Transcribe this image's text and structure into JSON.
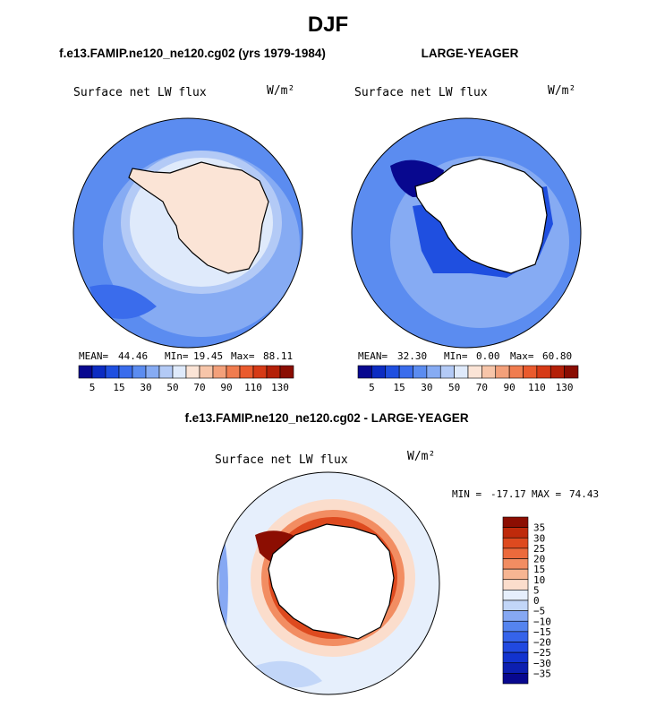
{
  "page_title": "DJF",
  "chart_data": [
    {
      "type": "heatmap",
      "subtype": "polar-stereographic-filled-contour",
      "region": "Southern Hemisphere",
      "title": "f.e13.FAMIP.ne120_ne120.cg02 (yrs 1979-1984)",
      "field_label": "Surface net LW flux",
      "units": "W/m²",
      "stats": {
        "mean_label": "MEAN=",
        "mean": "44.46",
        "min_label": "MIn=",
        "min": "19.45",
        "max_label": "Max=",
        "max": "88.11"
      },
      "levels": [
        5,
        15,
        30,
        50,
        70,
        90,
        110,
        130
      ],
      "tick_labels": [
        "5",
        "15",
        "30",
        "50",
        "70",
        "90",
        "110",
        "130"
      ],
      "colors": [
        "#08088f",
        "#0c2cc2",
        "#1f4fe0",
        "#3a6cec",
        "#5b8cf0",
        "#86abf3",
        "#b3caf6",
        "#dfeafb",
        "#fbe4d6",
        "#f7c5a9",
        "#f3a07a",
        "#f07c4f",
        "#ea5a2d",
        "#d63a16",
        "#b42008",
        "#8a0d02"
      ]
    },
    {
      "type": "heatmap",
      "subtype": "polar-stereographic-filled-contour",
      "region": "Southern Hemisphere",
      "title": "LARGE-YEAGER",
      "field_label": "Surface net LW flux",
      "units": "W/m²",
      "stats": {
        "mean_label": "MEAN=",
        "mean": "32.30",
        "min_label": "MIn=",
        "min": "0.00",
        "max_label": "Max=",
        "max": "60.80"
      },
      "levels": [
        5,
        15,
        30,
        50,
        70,
        90,
        110,
        130
      ],
      "tick_labels": [
        "5",
        "15",
        "30",
        "50",
        "70",
        "90",
        "110",
        "130"
      ],
      "colors": [
        "#08088f",
        "#0c2cc2",
        "#1f4fe0",
        "#3a6cec",
        "#5b8cf0",
        "#86abf3",
        "#b3caf6",
        "#dfeafb",
        "#fbe4d6",
        "#f7c5a9",
        "#f3a07a",
        "#f07c4f",
        "#ea5a2d",
        "#d63a16",
        "#b42008",
        "#8a0d02"
      ]
    },
    {
      "type": "heatmap",
      "subtype": "polar-stereographic-filled-contour-difference",
      "region": "Southern Hemisphere",
      "title": "f.e13.FAMIP.ne120_ne120.cg02 - LARGE-YEAGER",
      "field_label": "Surface net LW flux",
      "units": "W/m²",
      "stats": {
        "min_label": "MIN =",
        "min": "-17.17",
        "max_label": "MAX =",
        "max": "74.43"
      },
      "levels": [
        -35,
        -30,
        -25,
        -20,
        -15,
        -10,
        -5,
        0,
        5,
        10,
        15,
        20,
        25,
        30,
        35
      ],
      "tick_labels": [
        "−35",
        "−30",
        "−25",
        "−20",
        "−15",
        "−10",
        "−5",
        "0",
        "5",
        "10",
        "15",
        "20",
        "25",
        "30",
        "35"
      ],
      "colors": [
        "#08088f",
        "#0c1fb0",
        "#1233cf",
        "#2149e0",
        "#3563ea",
        "#5584ef",
        "#86a8f3",
        "#c2d6f8",
        "#e6effc",
        "#fbddcc",
        "#f7b592",
        "#f28d62",
        "#ec6a3c",
        "#de4a1f",
        "#bf2a0b",
        "#8c0e02"
      ]
    }
  ]
}
